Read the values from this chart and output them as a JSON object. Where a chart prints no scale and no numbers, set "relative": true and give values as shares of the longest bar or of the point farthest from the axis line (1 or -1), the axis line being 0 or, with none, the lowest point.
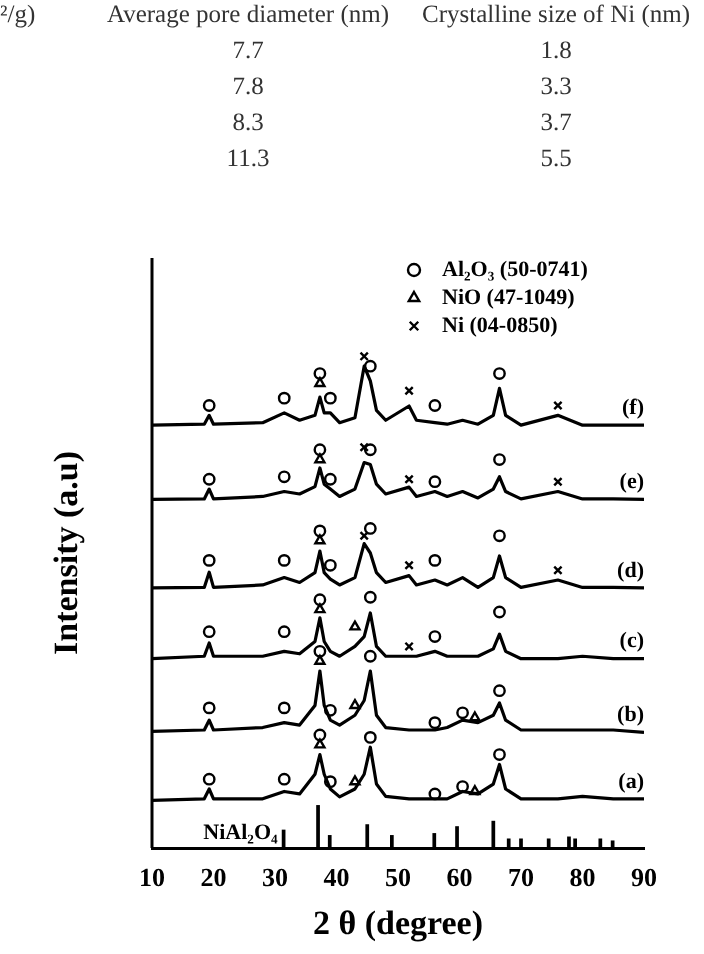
{
  "chart_data": {
    "type": "line",
    "relative": true,
    "xlabel": "2 θ (degree)",
    "ylabel": "Intensity (a.u)",
    "xlim": [
      10,
      90
    ],
    "xticks": [
      10,
      20,
      30,
      40,
      50,
      60,
      70,
      80,
      90
    ],
    "tick_labels": "x",
    "grid": false,
    "legend": "top right",
    "marker": "none",
    "line_style": "solid",
    "annotations": [
      "²/g)",
      "Average pore diameter (nm)",
      "Crystalline size of Ni (nm)",
      "7.7",
      "1.8",
      "7.8",
      "3.3",
      "8.3",
      "3.7",
      "11.3",
      "5.5"
    ],
    "series": [
      {
        "name": "(a)",
        "color": "#000000",
        "x": [
          10,
          18.5,
          19.3,
          20,
          28,
          31.5,
          34,
          36.5,
          37.3,
          38,
          39,
          40.5,
          43,
          44.5,
          45.5,
          46.5,
          48,
          51.8,
          53,
          56,
          58,
          60.5,
          63,
          65.5,
          66.5,
          67.5,
          70,
          76,
          80,
          85,
          90
        ],
        "values": [
          0.097,
          0.1,
          0.12,
          0.1,
          0.1,
          0.115,
          0.11,
          0.15,
          0.19,
          0.15,
          0.12,
          0.104,
          0.12,
          0.15,
          0.205,
          0.13,
          0.105,
          0.1,
          0.1,
          0.1,
          0.1,
          0.115,
          0.11,
          0.13,
          0.17,
          0.12,
          0.1,
          0.1,
          0.105,
          0.1,
          0.1
        ]
      },
      {
        "name": "(b)",
        "color": "#000000",
        "x": [
          10,
          18.5,
          19.3,
          20,
          28,
          31.5,
          34,
          36.5,
          37.3,
          38,
          39,
          40.5,
          43,
          44.5,
          45.5,
          46.5,
          48,
          51.8,
          53,
          56,
          58,
          60.5,
          63,
          65.5,
          66.5,
          67.5,
          70,
          76,
          80,
          85,
          90
        ],
        "values": [
          0.237,
          0.24,
          0.26,
          0.24,
          0.245,
          0.255,
          0.25,
          0.29,
          0.36,
          0.29,
          0.26,
          0.25,
          0.27,
          0.3,
          0.36,
          0.27,
          0.245,
          0.24,
          0.24,
          0.24,
          0.245,
          0.26,
          0.255,
          0.27,
          0.295,
          0.26,
          0.24,
          0.24,
          0.24,
          0.24,
          0.235
        ]
      },
      {
        "name": "(c)",
        "color": "#000000",
        "x": [
          10,
          18.5,
          19.3,
          20,
          28,
          31.5,
          34,
          36.5,
          37.3,
          38,
          39,
          40.5,
          43,
          44.5,
          45.5,
          46.5,
          48,
          51.8,
          53,
          56,
          58,
          60.5,
          63,
          65.5,
          66.5,
          67.5,
          70,
          76,
          80,
          85,
          90
        ],
        "values": [
          0.385,
          0.39,
          0.417,
          0.39,
          0.39,
          0.4,
          0.395,
          0.42,
          0.468,
          0.42,
          0.4,
          0.39,
          0.41,
          0.43,
          0.478,
          0.41,
          0.39,
          0.39,
          0.39,
          0.4,
          0.39,
          0.39,
          0.39,
          0.405,
          0.435,
          0.4,
          0.385,
          0.385,
          0.39,
          0.385,
          0.385
        ]
      },
      {
        "name": "(d)",
        "color": "#000000",
        "x": [
          10,
          18.5,
          19.3,
          20,
          28,
          31.5,
          34,
          36.5,
          37.3,
          38,
          39,
          40.5,
          43,
          44.5,
          45.5,
          46.5,
          48,
          51.8,
          53,
          56,
          58,
          60.5,
          63,
          65.5,
          66.5,
          67.5,
          70,
          76,
          80,
          85,
          90
        ],
        "values": [
          0.529,
          0.53,
          0.561,
          0.53,
          0.535,
          0.55,
          0.54,
          0.56,
          0.604,
          0.56,
          0.547,
          0.535,
          0.55,
          0.619,
          0.6,
          0.56,
          0.54,
          0.554,
          0.535,
          0.545,
          0.535,
          0.55,
          0.53,
          0.55,
          0.594,
          0.55,
          0.53,
          0.545,
          0.53,
          0.53,
          0.529
        ]
      },
      {
        "name": "(e)",
        "color": "#000000",
        "x": [
          10,
          18.5,
          19.3,
          20,
          28,
          31.5,
          34,
          36.5,
          37.3,
          38,
          39,
          40.5,
          43,
          44.5,
          45.5,
          46.5,
          48,
          51.8,
          53,
          56,
          58,
          60.5,
          63,
          65.5,
          66.5,
          67.5,
          70,
          76,
          80,
          85,
          90
        ],
        "values": [
          0.709,
          0.71,
          0.73,
          0.71,
          0.715,
          0.725,
          0.72,
          0.735,
          0.773,
          0.74,
          0.73,
          0.715,
          0.73,
          0.784,
          0.78,
          0.74,
          0.72,
          0.734,
          0.715,
          0.725,
          0.715,
          0.725,
          0.712,
          0.73,
          0.755,
          0.725,
          0.71,
          0.725,
          0.71,
          0.71,
          0.709
        ]
      },
      {
        "name": "(f)",
        "color": "#000000",
        "x": [
          10,
          18.5,
          19.3,
          20,
          28,
          31.5,
          34,
          36.5,
          37.3,
          38,
          39,
          40.5,
          43,
          44.5,
          45.5,
          46.5,
          48,
          51.8,
          53,
          56,
          58,
          60.5,
          63,
          65.5,
          66.5,
          67.5,
          70,
          76,
          80,
          85,
          90
        ],
        "values": [
          0.86,
          0.862,
          0.88,
          0.862,
          0.865,
          0.885,
          0.87,
          0.88,
          0.917,
          0.885,
          0.885,
          0.865,
          0.875,
          0.98,
          0.95,
          0.89,
          0.87,
          0.899,
          0.87,
          0.865,
          0.862,
          0.87,
          0.862,
          0.88,
          0.935,
          0.88,
          0.86,
          0.88,
          0.86,
          0.86,
          0.86
        ]
      },
      {
        "name": "NiAl₂O₄",
        "type": "bar",
        "color": "#000000",
        "x": [
          31.4,
          37,
          38.9,
          45,
          49,
          55.9,
          59.6,
          65.5,
          68,
          70,
          74.5,
          77.8,
          78.8,
          82.9,
          84.9
        ],
        "values": [
          0.036,
          0.086,
          0.025,
          0.047,
          0.025,
          0.029,
          0.043,
          0.054,
          0.018,
          0.018,
          0.018,
          0.022,
          0.018,
          0.018,
          0.014
        ]
      },
      {
        "name": "Al₂O₃ (50-0741)",
        "type": "scatter",
        "marker": "circle",
        "color": "#000000",
        "x": [
          19.3,
          31.5,
          37.3,
          39,
          45.5,
          56,
          66.5,
          19.3,
          31.5,
          37.3,
          39,
          45.5,
          56,
          66.5,
          19.3,
          31.5,
          37.3,
          39,
          45.5,
          56,
          66.5,
          19.3,
          31.5,
          37.3,
          45.5,
          56,
          66.5,
          19.3,
          31.5,
          37.3,
          39,
          45.5,
          56,
          60.5,
          66.5,
          19.3,
          31.5,
          37.3,
          39,
          45.5,
          56,
          60.5,
          66.5
        ],
        "values": [
          0.9,
          0.915,
          0.965,
          0.915,
          0.98,
          0.9,
          0.965,
          0.75,
          0.755,
          0.81,
          0.75,
          0.81,
          0.745,
          0.79,
          0.585,
          0.585,
          0.645,
          0.575,
          0.65,
          0.585,
          0.635,
          0.44,
          0.44,
          0.505,
          0.51,
          0.43,
          0.48,
          0.285,
          0.285,
          0.4,
          0.28,
          0.39,
          0.255,
          0.275,
          0.32,
          0.14,
          0.14,
          0.23,
          0.135,
          0.225,
          0.11,
          0.125,
          0.19
        ]
      },
      {
        "name": "NiO (47-1049)",
        "type": "scatter",
        "marker": "triangle",
        "color": "#000000",
        "x": [
          37.3,
          37.3,
          37.3,
          37.3,
          43,
          37.3,
          43,
          62.5,
          37.3,
          43,
          62.5
        ],
        "values": [
          0.945,
          0.79,
          0.625,
          0.485,
          0.45,
          0.38,
          0.29,
          0.265,
          0.21,
          0.135,
          0.115
        ]
      },
      {
        "name": "Ni (04-0850)",
        "type": "scatter",
        "marker": "cross",
        "color": "#000000",
        "x": [
          44.5,
          51.8,
          76,
          44.5,
          51.8,
          76,
          44.5,
          51.8,
          76,
          51.8
        ],
        "values": [
          1,
          0.93,
          0.9,
          0.815,
          0.75,
          0.745,
          0.635,
          0.575,
          0.565,
          0.41
        ]
      }
    ]
  }
}
